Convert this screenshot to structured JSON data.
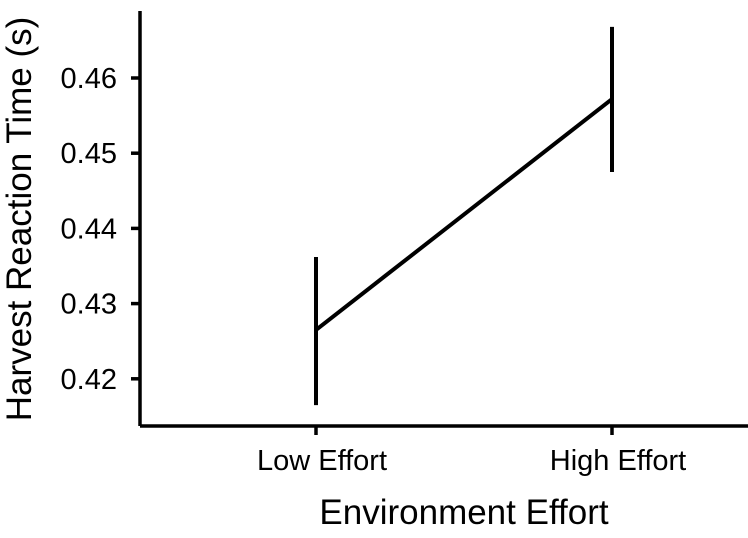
{
  "chart_data": {
    "type": "line",
    "title": "",
    "xlabel": "Environment Effort",
    "ylabel": "Harvest Reaction Time (s)",
    "categories": [
      "Low Effort",
      "High Effort"
    ],
    "series": [
      {
        "values": [
          0.4265,
          0.4572
        ],
        "error_low": [
          0.4165,
          0.4475
        ],
        "error_high": [
          0.4362,
          0.4668
        ]
      }
    ],
    "yticks": [
      0.42,
      0.43,
      0.44,
      0.45,
      0.46
    ],
    "ytick_labels": [
      "0.42",
      "0.43",
      "0.44",
      "0.45",
      "0.46"
    ],
    "ylim": [
      0.4135,
      0.4688
    ],
    "grid": false,
    "legend": "none",
    "line_color": "#000000"
  }
}
